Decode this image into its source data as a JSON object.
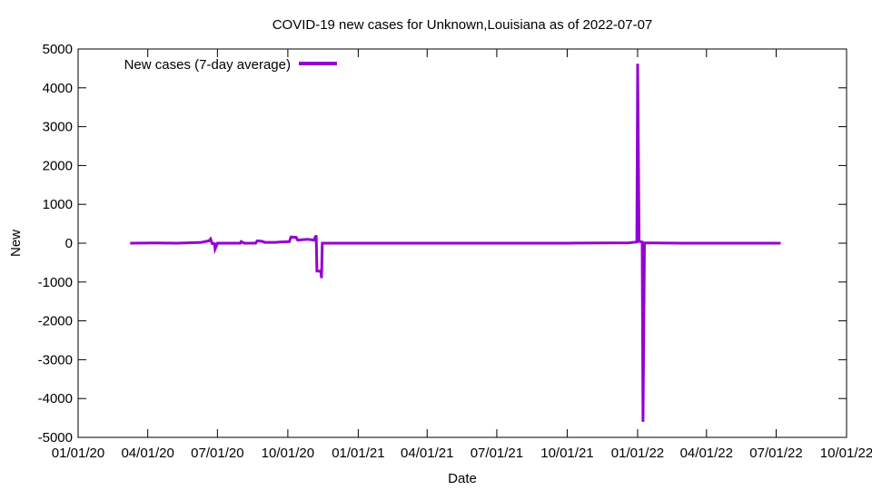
{
  "chart_data": {
    "type": "line",
    "title": "COVID-19 new cases for Unknown,Louisiana as of 2022-07-07",
    "xlabel": "Date",
    "ylabel": "New",
    "xlim": [
      "2020-01-01",
      "2022-10-01"
    ],
    "ylim": [
      -5000,
      5000
    ],
    "x_ticks": [
      "01/01/20",
      "04/01/20",
      "07/01/20",
      "10/01/20",
      "01/01/21",
      "04/01/21",
      "07/01/21",
      "10/01/21",
      "01/01/22",
      "04/01/22",
      "07/01/22",
      "10/01/22"
    ],
    "y_ticks": [
      -5000,
      -4000,
      -3000,
      -2000,
      -1000,
      0,
      1000,
      2000,
      3000,
      4000,
      5000
    ],
    "grid": false,
    "legend": "top-left",
    "color": "#9400d3",
    "series": [
      {
        "name": "New cases (7-day average)",
        "points": [
          [
            "2020-03-09",
            0
          ],
          [
            "2020-04-10",
            5
          ],
          [
            "2020-05-10",
            0
          ],
          [
            "2020-06-10",
            20
          ],
          [
            "2020-06-20",
            60
          ],
          [
            "2020-06-22",
            110
          ],
          [
            "2020-06-24",
            -10
          ],
          [
            "2020-06-27",
            -10
          ],
          [
            "2020-06-28",
            -150
          ],
          [
            "2020-07-01",
            0
          ],
          [
            "2020-07-20",
            0
          ],
          [
            "2020-07-31",
            0
          ],
          [
            "2020-08-01",
            40
          ],
          [
            "2020-08-05",
            0
          ],
          [
            "2020-08-20",
            0
          ],
          [
            "2020-08-22",
            60
          ],
          [
            "2020-08-28",
            50
          ],
          [
            "2020-09-01",
            20
          ],
          [
            "2020-09-15",
            20
          ],
          [
            "2020-09-20",
            30
          ],
          [
            "2020-10-03",
            40
          ],
          [
            "2020-10-05",
            160
          ],
          [
            "2020-10-12",
            150
          ],
          [
            "2020-10-14",
            80
          ],
          [
            "2020-10-20",
            90
          ],
          [
            "2020-10-27",
            100
          ],
          [
            "2020-11-04",
            80
          ],
          [
            "2020-11-07",
            200
          ],
          [
            "2020-11-08",
            -720
          ],
          [
            "2020-11-13",
            -720
          ],
          [
            "2020-11-14",
            -900
          ],
          [
            "2020-11-15",
            0
          ],
          [
            "2021-01-01",
            0
          ],
          [
            "2021-06-01",
            0
          ],
          [
            "2021-10-01",
            0
          ],
          [
            "2021-12-20",
            10
          ],
          [
            "2021-12-31",
            30
          ],
          [
            "2022-01-01",
            4620
          ],
          [
            "2022-01-03",
            50
          ],
          [
            "2022-01-07",
            30
          ],
          [
            "2022-01-08",
            -4600
          ],
          [
            "2022-01-10",
            10
          ],
          [
            "2022-03-01",
            0
          ],
          [
            "2022-06-01",
            0
          ],
          [
            "2022-07-07",
            0
          ]
        ]
      }
    ]
  }
}
